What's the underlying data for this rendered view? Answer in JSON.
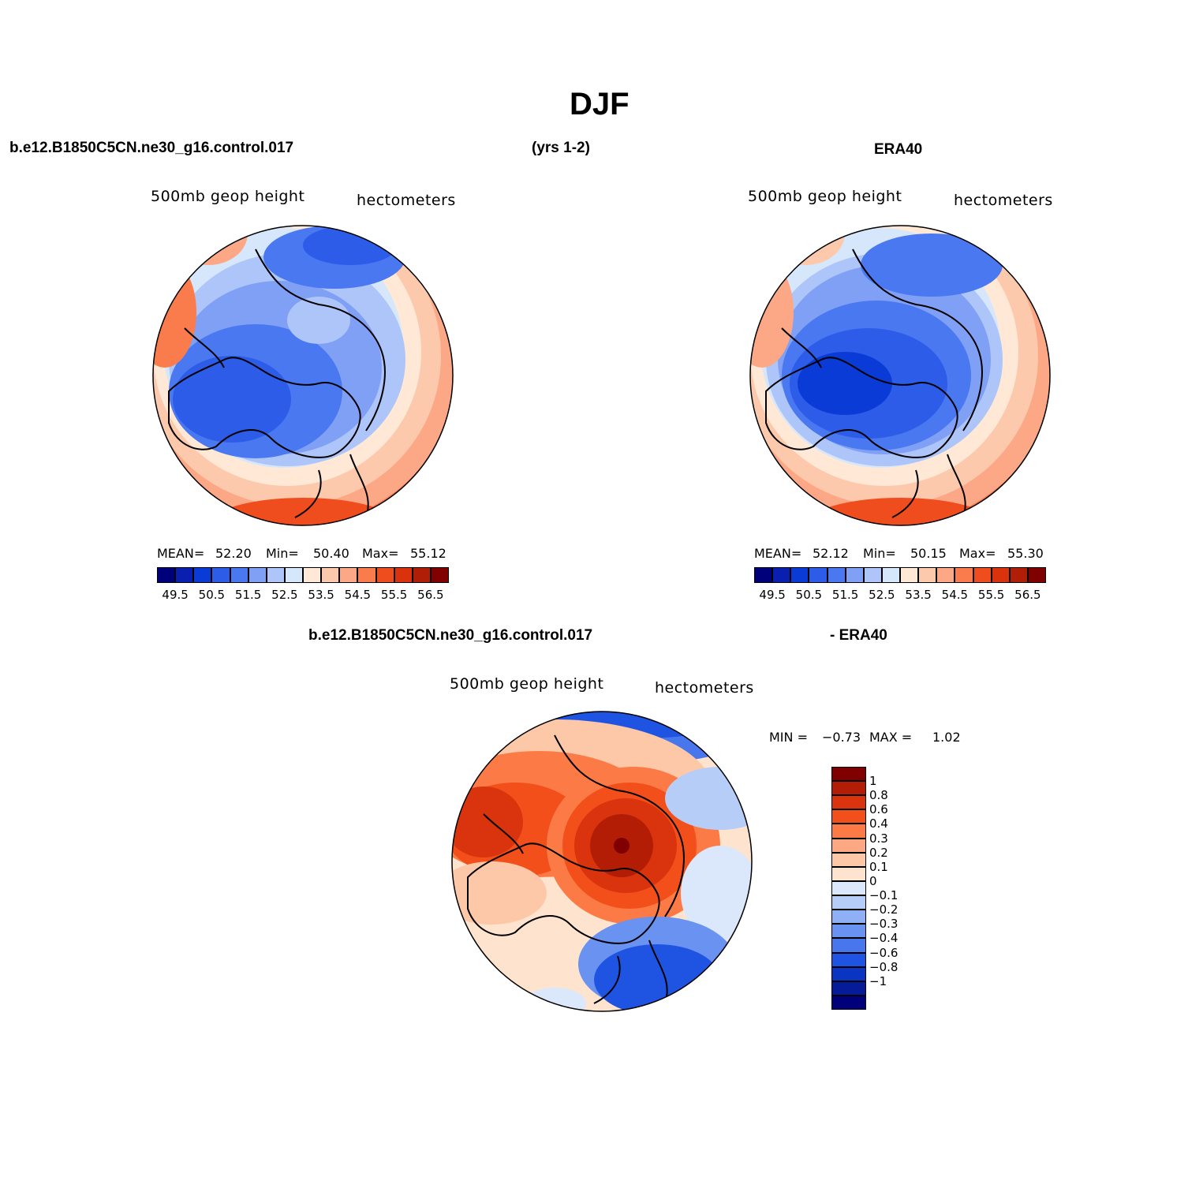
{
  "title": "DJF",
  "headers": {
    "case": "b.e12.B1850C5CN.ne30_g16.control.017",
    "years": "(yrs 1-2)",
    "obs": "ERA40",
    "diff_case": "b.e12.B1850C5CN.ne30_g16.control.017",
    "diff_obs": "- ERA40"
  },
  "panels": [
    {
      "variable": "500mb geop height",
      "units": "hectometers",
      "stats": {
        "mean_label": "MEAN=",
        "mean": "52.20",
        "min_label": "Min=",
        "min": "50.40",
        "max_label": "Max=",
        "max": "55.12"
      }
    },
    {
      "variable": "500mb geop height",
      "units": "hectometers",
      "stats": {
        "mean_label": "MEAN=",
        "mean": "52.12",
        "min_label": "Min=",
        "min": "50.15",
        "max_label": "Max=",
        "max": "55.30"
      }
    },
    {
      "variable": "500mb geop height",
      "units": "hectometers",
      "stats": {
        "min_label": "MIN =",
        "min": "−0.73",
        "max_label": "MAX =",
        "max": "1.02"
      }
    }
  ],
  "colorbar_top": {
    "colors": [
      "#00007a",
      "#0a1fb0",
      "#0a3bd6",
      "#2d5ce8",
      "#4a78f0",
      "#7fa0f5",
      "#adc5f8",
      "#d6e7fb",
      "#ffe9d6",
      "#fdc9ac",
      "#fca886",
      "#fa7b4c",
      "#f04d1e",
      "#d9320c",
      "#b01e08",
      "#800000"
    ],
    "labels": [
      "49.5",
      "50.5",
      "51.5",
      "52.5",
      "53.5",
      "54.5",
      "55.5",
      "56.5"
    ]
  },
  "colorbar_diff": {
    "colors": [
      "#800000",
      "#b31d05",
      "#d9340d",
      "#f24f1a",
      "#fc7a45",
      "#fca882",
      "#fdc8a8",
      "#fee4cf",
      "#dbe8fb",
      "#b6cdf8",
      "#8fb0f4",
      "#6a92f0",
      "#4877ed",
      "#1f54e3",
      "#0a35c2",
      "#061b97",
      "#00007a"
    ],
    "labels": [
      "1",
      "0.8",
      "0.6",
      "0.4",
      "0.3",
      "0.2",
      "0.1",
      "0",
      "−0.1",
      "−0.2",
      "−0.3",
      "−0.4",
      "−0.6",
      "−0.8",
      "−1"
    ]
  },
  "map_colors": {
    "blue_deep": "#0a3bd6",
    "blue_mid": "#2d5ce8",
    "blue": "#4a78f0",
    "blue_light": "#7fa0f5",
    "blue_pale": "#adc5f8",
    "blue_faint": "#d6e7fb",
    "peach": "#ffe9d6",
    "salmon": "#fdc9ac",
    "orange_light": "#fca886",
    "orange": "#fa7b4c",
    "red_orange": "#f04d1e",
    "red": "#b31d05",
    "maroon": "#800000"
  }
}
